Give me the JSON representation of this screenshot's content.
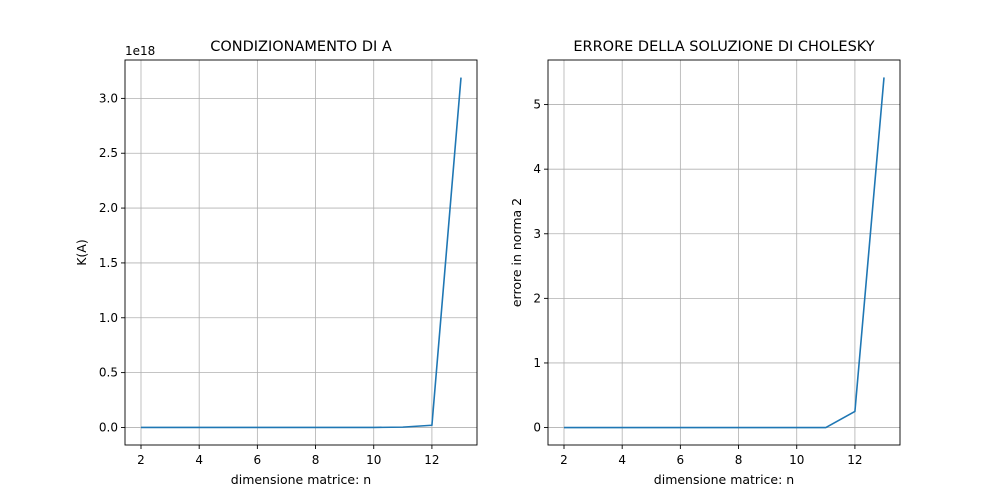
{
  "chart_data": [
    {
      "type": "line",
      "title": "CONDIZIONAMENTO DI A",
      "xlabel": "dimensione matrice: n",
      "ylabel": "K(A)",
      "offset_text": "1e18",
      "x": [
        2,
        3,
        4,
        5,
        6,
        7,
        8,
        9,
        10,
        11,
        12,
        13
      ],
      "series": [
        {
          "values": [
            0,
            0,
            0,
            0,
            0,
            0,
            0,
            0,
            0,
            0.003,
            0.02,
            3.19
          ]
        }
      ],
      "xlim": [
        1.45,
        13.55
      ],
      "ylim": [
        -0.16,
        3.35
      ],
      "xticks": [
        2,
        4,
        6,
        8,
        10,
        12
      ],
      "yticks": [
        0.0,
        0.5,
        1.0,
        1.5,
        2.0,
        2.5,
        3.0
      ],
      "ytick_labels": [
        "0.0",
        "0.5",
        "1.0",
        "1.5",
        "2.0",
        "2.5",
        "3.0"
      ],
      "grid": true,
      "color": "#1f77b4"
    },
    {
      "type": "line",
      "title": "ERRORE DELLA SOLUZIONE DI CHOLESKY",
      "xlabel": "dimensione matrice: n",
      "ylabel": "errore in norma 2",
      "x": [
        2,
        3,
        4,
        5,
        6,
        7,
        8,
        9,
        10,
        11,
        12,
        13
      ],
      "series": [
        {
          "values": [
            0,
            0,
            0,
            0,
            0,
            0,
            0,
            0,
            0,
            0,
            0.25,
            5.42
          ]
        }
      ],
      "xlim": [
        1.45,
        13.55
      ],
      "ylim": [
        -0.27,
        5.69
      ],
      "xticks": [
        2,
        4,
        6,
        8,
        10,
        12
      ],
      "yticks": [
        0,
        1,
        2,
        3,
        4,
        5
      ],
      "ytick_labels": [
        "0",
        "1",
        "2",
        "3",
        "4",
        "5"
      ],
      "grid": true,
      "color": "#1f77b4"
    }
  ]
}
